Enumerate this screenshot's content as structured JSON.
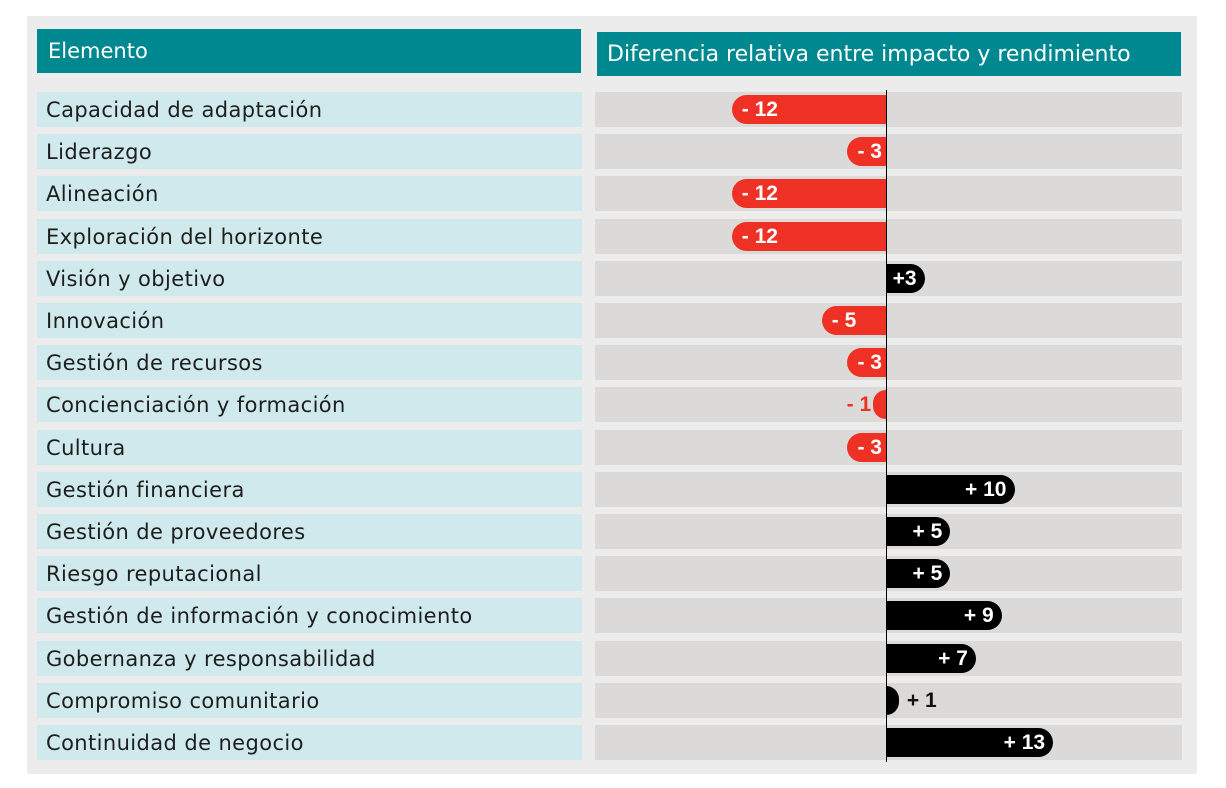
{
  "headers": {
    "elemento": "Elemento",
    "diferencia": "Diferencia relativa entre impacto y rendimiento"
  },
  "colors": {
    "header_bg": "#008891",
    "label_bg": "#cfe9ed",
    "track_bg": "#dcdad8",
    "negative": "#ee3124",
    "positive": "#000000"
  },
  "chart_data": {
    "type": "bar",
    "orientation": "horizontal",
    "title": "Diferencia relativa entre impacto y rendimiento",
    "category_header": "Elemento",
    "xlim": [
      -14,
      14
    ],
    "categories": [
      "Capacidad de adaptación",
      "Liderazgo",
      "Alineación",
      "Exploración del horizonte",
      "Visión y objetivo",
      "Innovación",
      "Gestión de recursos",
      "Concienciación y formación",
      "Cultura",
      "Gestión financiera",
      "Gestión de proveedores",
      "Riesgo reputacional",
      "Gestión de información y conocimiento",
      "Gobernanza y responsabilidad",
      "Compromiso comunitario",
      "Continuidad de negocio"
    ],
    "values": [
      -12,
      -3,
      -12,
      -12,
      3,
      -5,
      -3,
      -1,
      -3,
      10,
      5,
      5,
      9,
      7,
      1,
      13
    ],
    "data_labels": [
      "- 12",
      "- 3",
      "- 12",
      "- 12",
      "+3",
      "- 5",
      "- 3",
      "- 1",
      "- 3",
      "+ 10",
      "+ 5",
      "+ 5",
      "+ 9",
      "+ 7",
      "+ 1",
      "+ 13"
    ]
  }
}
